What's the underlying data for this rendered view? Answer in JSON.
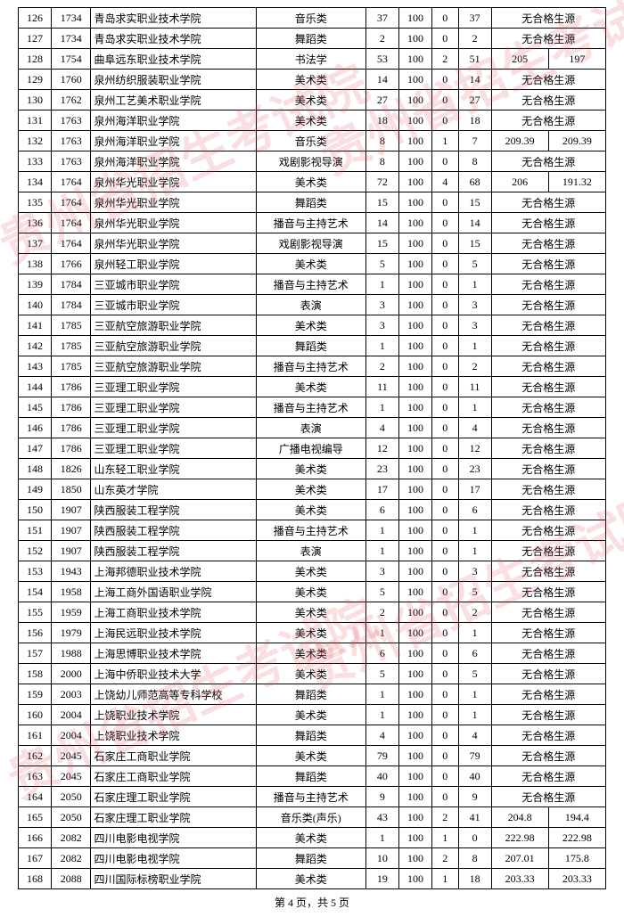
{
  "watermark_text": "贵州省招生考试院",
  "footer": "第 4 页，共 5 页",
  "no_source": "无合格生源",
  "rows": [
    {
      "i": 126,
      "c": 1734,
      "n": "青岛求实职业技术学院",
      "cat": "音乐类",
      "a": 37,
      "b": 100,
      "d": 0,
      "e": 37,
      "r": null
    },
    {
      "i": 127,
      "c": 1734,
      "n": "青岛求实职业技术学院",
      "cat": "舞蹈类",
      "a": 2,
      "b": 100,
      "d": 0,
      "e": 2,
      "r": null
    },
    {
      "i": 128,
      "c": 1754,
      "n": "曲阜远东职业技术学院",
      "cat": "书法学",
      "a": 53,
      "b": 100,
      "d": 2,
      "e": 51,
      "r": [
        205,
        197
      ]
    },
    {
      "i": 129,
      "c": 1760,
      "n": "泉州纺织服装职业学院",
      "cat": "美术类",
      "a": 14,
      "b": 100,
      "d": 0,
      "e": 14,
      "r": null
    },
    {
      "i": 130,
      "c": 1762,
      "n": "泉州工艺美术职业学院",
      "cat": "美术类",
      "a": 27,
      "b": 100,
      "d": 0,
      "e": 27,
      "r": null
    },
    {
      "i": 131,
      "c": 1763,
      "n": "泉州海洋职业学院",
      "cat": "美术类",
      "a": 18,
      "b": 100,
      "d": 0,
      "e": 18,
      "r": null
    },
    {
      "i": 132,
      "c": 1763,
      "n": "泉州海洋职业学院",
      "cat": "音乐类",
      "a": 8,
      "b": 100,
      "d": 1,
      "e": 7,
      "r": [
        209.39,
        209.39
      ]
    },
    {
      "i": 133,
      "c": 1763,
      "n": "泉州海洋职业学院",
      "cat": "戏剧影视导演",
      "a": 8,
      "b": 100,
      "d": 0,
      "e": 8,
      "r": null
    },
    {
      "i": 134,
      "c": 1764,
      "n": "泉州华光职业学院",
      "cat": "美术类",
      "a": 72,
      "b": 100,
      "d": 4,
      "e": 68,
      "r": [
        206,
        191.32
      ]
    },
    {
      "i": 135,
      "c": 1764,
      "n": "泉州华光职业学院",
      "cat": "舞蹈类",
      "a": 15,
      "b": 100,
      "d": 0,
      "e": 15,
      "r": null
    },
    {
      "i": 136,
      "c": 1764,
      "n": "泉州华光职业学院",
      "cat": "播音与主持艺术",
      "a": 14,
      "b": 100,
      "d": 0,
      "e": 14,
      "r": null
    },
    {
      "i": 137,
      "c": 1764,
      "n": "泉州华光职业学院",
      "cat": "戏剧影视导演",
      "a": 15,
      "b": 100,
      "d": 0,
      "e": 15,
      "r": null
    },
    {
      "i": 138,
      "c": 1766,
      "n": "泉州轻工职业学院",
      "cat": "美术类",
      "a": 5,
      "b": 100,
      "d": 0,
      "e": 5,
      "r": null
    },
    {
      "i": 139,
      "c": 1784,
      "n": "三亚城市职业学院",
      "cat": "播音与主持艺术",
      "a": 1,
      "b": 100,
      "d": 0,
      "e": 1,
      "r": null
    },
    {
      "i": 140,
      "c": 1784,
      "n": "三亚城市职业学院",
      "cat": "表演",
      "a": 3,
      "b": 100,
      "d": 0,
      "e": 3,
      "r": null
    },
    {
      "i": 141,
      "c": 1785,
      "n": "三亚航空旅游职业学院",
      "cat": "美术类",
      "a": 3,
      "b": 100,
      "d": 0,
      "e": 3,
      "r": null
    },
    {
      "i": 142,
      "c": 1785,
      "n": "三亚航空旅游职业学院",
      "cat": "舞蹈类",
      "a": 1,
      "b": 100,
      "d": 0,
      "e": 1,
      "r": null
    },
    {
      "i": 143,
      "c": 1785,
      "n": "三亚航空旅游职业学院",
      "cat": "播音与主持艺术",
      "a": 2,
      "b": 100,
      "d": 0,
      "e": 2,
      "r": null
    },
    {
      "i": 144,
      "c": 1786,
      "n": "三亚理工职业学院",
      "cat": "美术类",
      "a": 11,
      "b": 100,
      "d": 0,
      "e": 11,
      "r": null
    },
    {
      "i": 145,
      "c": 1786,
      "n": "三亚理工职业学院",
      "cat": "播音与主持艺术",
      "a": 1,
      "b": 100,
      "d": 0,
      "e": 1,
      "r": null
    },
    {
      "i": 146,
      "c": 1786,
      "n": "三亚理工职业学院",
      "cat": "表演",
      "a": 4,
      "b": 100,
      "d": 0,
      "e": 4,
      "r": null
    },
    {
      "i": 147,
      "c": 1786,
      "n": "三亚理工职业学院",
      "cat": "广播电视编导",
      "a": 12,
      "b": 100,
      "d": 0,
      "e": 12,
      "r": null
    },
    {
      "i": 148,
      "c": 1826,
      "n": "山东轻工职业学院",
      "cat": "美术类",
      "a": 23,
      "b": 100,
      "d": 0,
      "e": 23,
      "r": null
    },
    {
      "i": 149,
      "c": 1850,
      "n": "山东英才学院",
      "cat": "美术类",
      "a": 17,
      "b": 100,
      "d": 0,
      "e": 17,
      "r": null
    },
    {
      "i": 150,
      "c": 1907,
      "n": "陕西服装工程学院",
      "cat": "美术类",
      "a": 6,
      "b": 100,
      "d": 0,
      "e": 6,
      "r": null
    },
    {
      "i": 151,
      "c": 1907,
      "n": "陕西服装工程学院",
      "cat": "播音与主持艺术",
      "a": 1,
      "b": 100,
      "d": 0,
      "e": 1,
      "r": null
    },
    {
      "i": 152,
      "c": 1907,
      "n": "陕西服装工程学院",
      "cat": "表演",
      "a": 1,
      "b": 100,
      "d": 0,
      "e": 1,
      "r": null
    },
    {
      "i": 153,
      "c": 1943,
      "n": "上海邦德职业技术学院",
      "cat": "美术类",
      "a": 3,
      "b": 100,
      "d": 0,
      "e": 3,
      "r": null
    },
    {
      "i": 154,
      "c": 1958,
      "n": "上海工商外国语职业学院",
      "cat": "美术类",
      "a": 5,
      "b": 100,
      "d": 0,
      "e": 5,
      "r": null
    },
    {
      "i": 155,
      "c": 1959,
      "n": "上海工商职业技术学院",
      "cat": "美术类",
      "a": 2,
      "b": 100,
      "d": 0,
      "e": 2,
      "r": null
    },
    {
      "i": 156,
      "c": 1979,
      "n": "上海民远职业技术学院",
      "cat": "美术类",
      "a": 1,
      "b": 100,
      "d": 0,
      "e": 1,
      "r": null
    },
    {
      "i": 157,
      "c": 1988,
      "n": "上海思博职业技术学院",
      "cat": "美术类",
      "a": 6,
      "b": 100,
      "d": 0,
      "e": 6,
      "r": null
    },
    {
      "i": 158,
      "c": 2000,
      "n": "上海中侨职业技术大学",
      "cat": "美术类",
      "a": 5,
      "b": 100,
      "d": 0,
      "e": 5,
      "r": null
    },
    {
      "i": 159,
      "c": 2003,
      "n": "上饶幼儿师范高等专科学校",
      "cat": "舞蹈类",
      "a": 1,
      "b": 100,
      "d": 0,
      "e": 1,
      "r": null
    },
    {
      "i": 160,
      "c": 2004,
      "n": "上饶职业技术学院",
      "cat": "美术类",
      "a": 1,
      "b": 100,
      "d": 0,
      "e": 1,
      "r": null
    },
    {
      "i": 161,
      "c": 2004,
      "n": "上饶职业技术学院",
      "cat": "舞蹈类",
      "a": 4,
      "b": 100,
      "d": 0,
      "e": 4,
      "r": null
    },
    {
      "i": 162,
      "c": 2045,
      "n": "石家庄工商职业学院",
      "cat": "美术类",
      "a": 79,
      "b": 100,
      "d": 0,
      "e": 79,
      "r": null
    },
    {
      "i": 163,
      "c": 2045,
      "n": "石家庄工商职业学院",
      "cat": "舞蹈类",
      "a": 40,
      "b": 100,
      "d": 0,
      "e": 40,
      "r": null
    },
    {
      "i": 164,
      "c": 2050,
      "n": "石家庄理工职业学院",
      "cat": "播音与主持艺术",
      "a": 9,
      "b": 100,
      "d": 0,
      "e": 9,
      "r": null
    },
    {
      "i": 165,
      "c": 2050,
      "n": "石家庄理工职业学院",
      "cat": "音乐类(声乐)",
      "a": 43,
      "b": 100,
      "d": 2,
      "e": 41,
      "r": [
        204.8,
        194.4
      ]
    },
    {
      "i": 166,
      "c": 2082,
      "n": "四川电影电视学院",
      "cat": "美术类",
      "a": 1,
      "b": 100,
      "d": 1,
      "e": 0,
      "r": [
        222.98,
        222.98
      ]
    },
    {
      "i": 167,
      "c": 2082,
      "n": "四川电影电视学院",
      "cat": "舞蹈类",
      "a": 10,
      "b": 100,
      "d": 2,
      "e": 8,
      "r": [
        207.01,
        175.8
      ]
    },
    {
      "i": 168,
      "c": 2088,
      "n": "四川国际标榜职业学院",
      "cat": "美术类",
      "a": 19,
      "b": 100,
      "d": 1,
      "e": 18,
      "r": [
        203.33,
        203.33
      ]
    }
  ]
}
